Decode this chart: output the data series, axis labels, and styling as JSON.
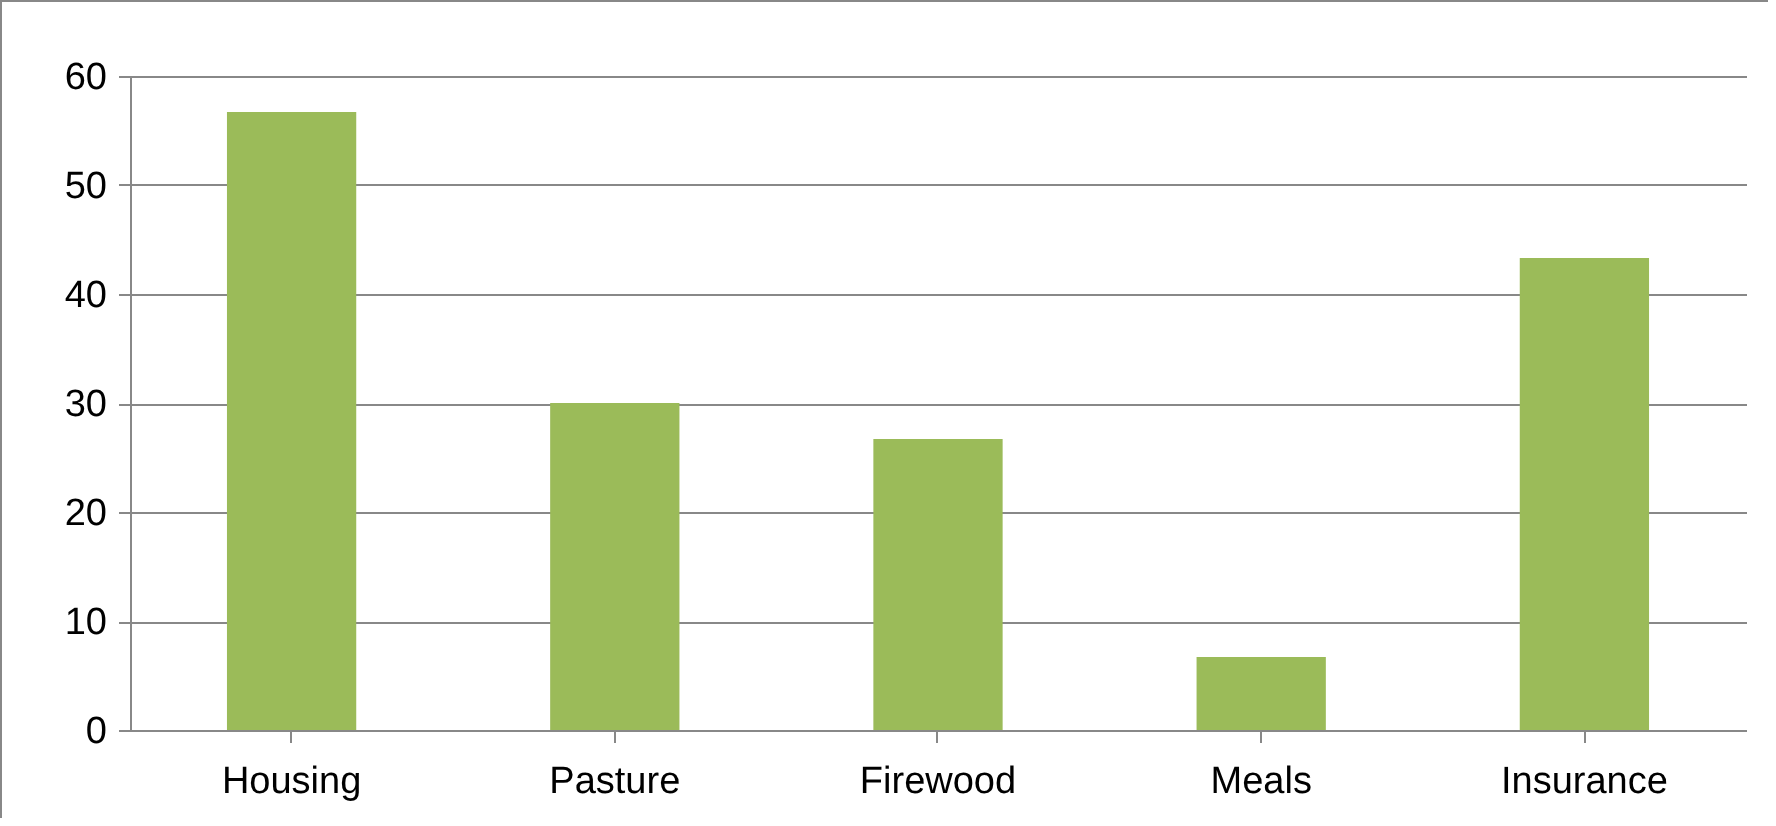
{
  "chart_data": {
    "type": "bar",
    "categories": [
      "Housing",
      "Pasture",
      "Firewood",
      "Meals",
      "Insurance"
    ],
    "values": [
      56.7,
      30,
      26.7,
      6.7,
      43.3
    ],
    "color": "#9bbb59",
    "ylim": [
      0,
      60
    ],
    "yticks": [
      0,
      10,
      20,
      30,
      40,
      50,
      60
    ],
    "grid": "y"
  }
}
